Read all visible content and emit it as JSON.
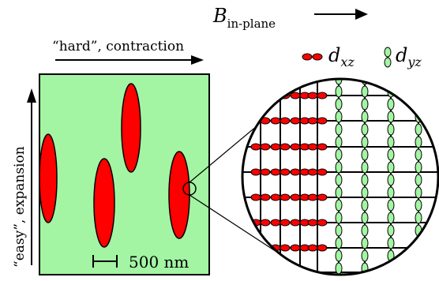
{
  "field": {
    "symbol": "B",
    "subscript": "in-plane"
  },
  "axes": {
    "hard_label": "“hard”, contraction",
    "easy_label": "“easy”, expansion"
  },
  "scale_bar": {
    "label": "500 nm"
  },
  "legend": {
    "dxz": {
      "base": "d",
      "sub": "xz",
      "color": "#ff0000"
    },
    "dyz": {
      "base": "d",
      "sub": "yz",
      "color": "#a3f5a3"
    }
  },
  "colors": {
    "film": "#a3f5a3",
    "domain": "#ff0000",
    "lines": "#000000"
  },
  "icons": {
    "field_arrow": "right-arrow",
    "hard_arrow": "right-arrow",
    "easy_arrow": "up-arrow",
    "zoom_marker": "circle-marker"
  }
}
